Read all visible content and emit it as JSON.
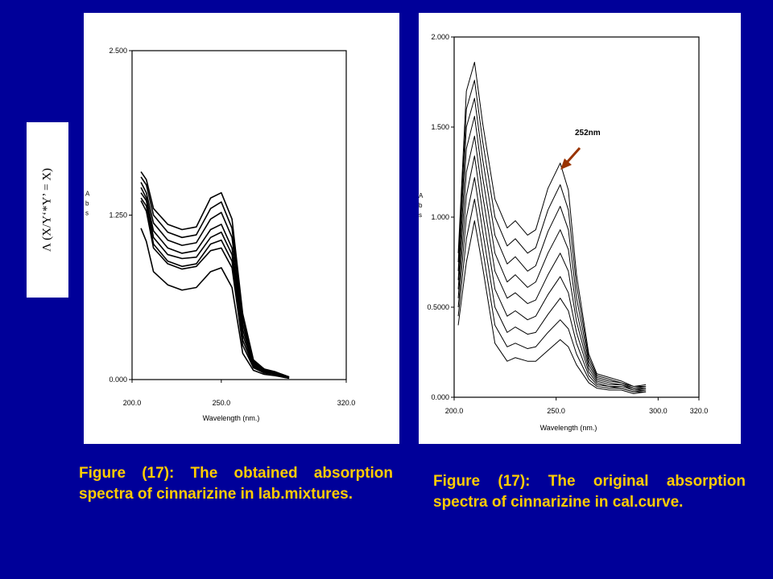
{
  "side_label": "Λ (X/Y‘*Y’ = X)",
  "captions": {
    "left": "Figure (17): The obtained absorption spectra of cinnarizine in lab.mixtures.",
    "right": "Figure (17): The original absorption spectra of cinnarizine in cal.curve."
  },
  "colors": {
    "background": "#000099",
    "caption": "#ffcc00",
    "arrow": "#993300"
  },
  "chart_data": [
    {
      "type": "line",
      "title": "",
      "xlabel": "Wavelength (nm.)",
      "ylabel": "Abs",
      "xlim": [
        200,
        320
      ],
      "ylim": [
        0,
        2.5
      ],
      "xticks": [
        "200.0",
        "250.0",
        "320.0"
      ],
      "yticks": [
        "0.000",
        "1.250",
        "2.500"
      ],
      "grid": false,
      "x": [
        205,
        208,
        212,
        220,
        228,
        236,
        244,
        250,
        256,
        262,
        268,
        274,
        280,
        284,
        288
      ],
      "series": [
        {
          "values": [
            1.15,
            1.05,
            0.82,
            0.72,
            0.68,
            0.7,
            0.82,
            0.85,
            0.7,
            0.2,
            0.07,
            0.04,
            0.03,
            0.02,
            0.01
          ]
        },
        {
          "values": [
            1.36,
            1.28,
            1.0,
            0.88,
            0.84,
            0.86,
            0.98,
            1.0,
            0.85,
            0.26,
            0.09,
            0.05,
            0.04,
            0.02,
            0.01
          ]
        },
        {
          "values": [
            1.38,
            1.32,
            1.03,
            0.9,
            0.86,
            0.88,
            1.03,
            1.06,
            0.9,
            0.3,
            0.1,
            0.06,
            0.04,
            0.03,
            0.01
          ]
        },
        {
          "values": [
            1.42,
            1.36,
            1.08,
            0.95,
            0.92,
            0.93,
            1.08,
            1.12,
            0.95,
            0.34,
            0.11,
            0.06,
            0.04,
            0.03,
            0.01
          ]
        },
        {
          "values": [
            1.46,
            1.38,
            1.13,
            1.0,
            0.96,
            0.98,
            1.14,
            1.18,
            1.0,
            0.38,
            0.12,
            0.07,
            0.05,
            0.03,
            0.02
          ]
        },
        {
          "values": [
            1.5,
            1.42,
            1.19,
            1.06,
            1.02,
            1.04,
            1.22,
            1.27,
            1.08,
            0.42,
            0.13,
            0.07,
            0.05,
            0.03,
            0.02
          ]
        },
        {
          "values": [
            1.54,
            1.48,
            1.25,
            1.12,
            1.08,
            1.1,
            1.3,
            1.35,
            1.15,
            0.46,
            0.14,
            0.08,
            0.05,
            0.04,
            0.02
          ]
        },
        {
          "values": [
            1.58,
            1.52,
            1.3,
            1.18,
            1.14,
            1.16,
            1.38,
            1.42,
            1.22,
            0.5,
            0.15,
            0.08,
            0.06,
            0.04,
            0.02
          ]
        }
      ]
    },
    {
      "type": "line",
      "title": "",
      "xlabel": "Wavelength (nm.)",
      "ylabel": "Abs",
      "xlim": [
        200,
        320
      ],
      "ylim": [
        0,
        2.0
      ],
      "xticks": [
        "200.0",
        "250.0",
        "300.0",
        "320.0"
      ],
      "yticks": [
        "0.000",
        "0.5000",
        "1.000",
        "1.500",
        "2.000"
      ],
      "grid": false,
      "annotation": "252nm",
      "x": [
        202,
        206,
        210,
        214,
        220,
        226,
        230,
        236,
        240,
        246,
        252,
        256,
        260,
        266,
        270,
        276,
        282,
        288,
        294
      ],
      "series": [
        {
          "values": [
            0.4,
            0.75,
            0.98,
            0.72,
            0.3,
            0.2,
            0.22,
            0.2,
            0.2,
            0.26,
            0.32,
            0.28,
            0.18,
            0.08,
            0.05,
            0.04,
            0.04,
            0.02,
            0.03
          ]
        },
        {
          "values": [
            0.45,
            0.88,
            1.1,
            0.82,
            0.4,
            0.28,
            0.3,
            0.27,
            0.28,
            0.36,
            0.43,
            0.38,
            0.24,
            0.1,
            0.06,
            0.05,
            0.05,
            0.03,
            0.03
          ]
        },
        {
          "values": [
            0.5,
            1.0,
            1.22,
            0.92,
            0.5,
            0.36,
            0.39,
            0.35,
            0.36,
            0.46,
            0.55,
            0.48,
            0.3,
            0.12,
            0.07,
            0.06,
            0.05,
            0.03,
            0.04
          ]
        },
        {
          "values": [
            0.55,
            1.12,
            1.34,
            1.02,
            0.6,
            0.45,
            0.48,
            0.43,
            0.45,
            0.57,
            0.67,
            0.58,
            0.36,
            0.14,
            0.08,
            0.06,
            0.06,
            0.04,
            0.04
          ]
        },
        {
          "values": [
            0.6,
            1.25,
            1.45,
            1.12,
            0.7,
            0.55,
            0.58,
            0.52,
            0.54,
            0.68,
            0.8,
            0.7,
            0.42,
            0.16,
            0.09,
            0.07,
            0.07,
            0.04,
            0.05
          ]
        },
        {
          "values": [
            0.65,
            1.38,
            1.56,
            1.22,
            0.8,
            0.64,
            0.68,
            0.61,
            0.64,
            0.8,
            0.93,
            0.82,
            0.48,
            0.18,
            0.1,
            0.08,
            0.07,
            0.05,
            0.05
          ]
        },
        {
          "values": [
            0.7,
            1.5,
            1.66,
            1.32,
            0.9,
            0.74,
            0.78,
            0.7,
            0.73,
            0.92,
            1.06,
            0.93,
            0.55,
            0.2,
            0.11,
            0.09,
            0.08,
            0.05,
            0.06
          ]
        },
        {
          "values": [
            0.75,
            1.6,
            1.76,
            1.42,
            1.0,
            0.84,
            0.88,
            0.8,
            0.83,
            1.04,
            1.18,
            1.04,
            0.62,
            0.22,
            0.12,
            0.1,
            0.08,
            0.06,
            0.06
          ]
        },
        {
          "values": [
            0.8,
            1.7,
            1.86,
            1.52,
            1.1,
            0.94,
            0.98,
            0.9,
            0.93,
            1.16,
            1.3,
            1.15,
            0.68,
            0.24,
            0.13,
            0.11,
            0.09,
            0.06,
            0.07
          ]
        }
      ]
    }
  ]
}
